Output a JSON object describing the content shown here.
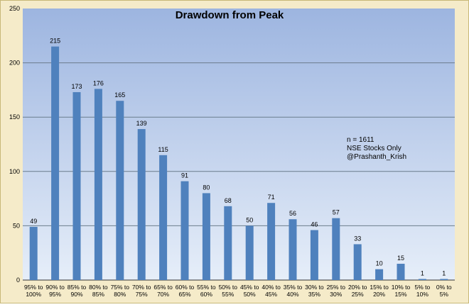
{
  "chart_data": {
    "type": "bar",
    "title": "Drawdown from Peak",
    "xlabel": "",
    "ylabel": "",
    "ylim": [
      0,
      250
    ],
    "yticks": [
      0,
      50,
      100,
      150,
      200,
      250
    ],
    "grid": true,
    "categories": [
      [
        "95% to",
        "100%"
      ],
      [
        "90% to",
        "95%"
      ],
      [
        "85% to",
        "90%"
      ],
      [
        "80% to",
        "85%"
      ],
      [
        "75% to",
        "80%"
      ],
      [
        "70% to",
        "75%"
      ],
      [
        "65% to",
        "70%"
      ],
      [
        "60% to",
        "65%"
      ],
      [
        "55% to",
        "60%"
      ],
      [
        "50% to",
        "55%"
      ],
      [
        "45% to",
        "50%"
      ],
      [
        "40% to",
        "45%"
      ],
      [
        "35% to",
        "40%"
      ],
      [
        "30% to",
        "35%"
      ],
      [
        "25% to",
        "30%"
      ],
      [
        "20% to",
        "25%"
      ],
      [
        "15% to",
        "20%"
      ],
      [
        "10% to",
        "15%"
      ],
      [
        "5% to",
        "10%"
      ],
      [
        "0% to",
        "5%"
      ]
    ],
    "values": [
      49,
      215,
      173,
      176,
      165,
      139,
      115,
      91,
      80,
      68,
      50,
      71,
      56,
      46,
      57,
      33,
      10,
      15,
      1,
      1
    ],
    "annotation": [
      "n = 1611",
      "NSE Stocks Only",
      "@Prashanth_Krish"
    ],
    "colors": {
      "bar": "#4f81bd",
      "plot_top": "#9db5e0",
      "plot_bottom": "#e6eef9",
      "frame_fill": "#f5ebc9",
      "frame_stroke": "#c8b878",
      "grid": "#6b7c8c",
      "text": "#000000"
    }
  }
}
